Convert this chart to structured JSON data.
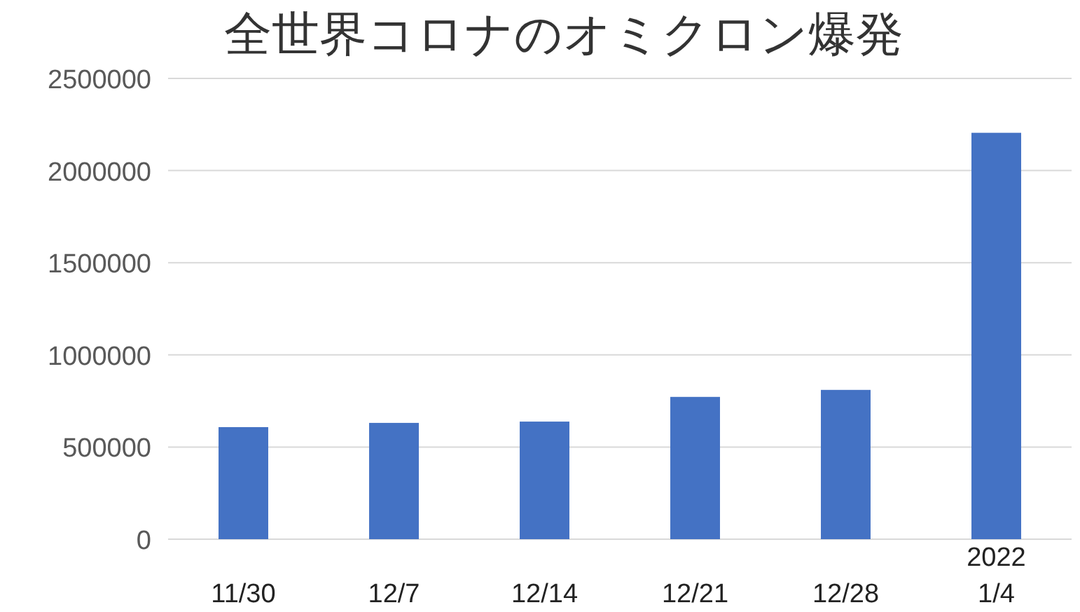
{
  "chart_data": {
    "type": "bar",
    "title": "全世界コロナのオミクロン爆発",
    "categories": [
      "11/30",
      "12/7",
      "12/14",
      "12/21",
      "12/28",
      "2022\n1/4"
    ],
    "values": [
      608000,
      631000,
      638000,
      772000,
      810000,
      2205000
    ],
    "color": "#4472c4",
    "ylim": [
      0,
      2500000
    ],
    "yticks": [
      0,
      500000,
      1000000,
      1500000,
      2000000,
      2500000
    ],
    "grid": "y"
  }
}
